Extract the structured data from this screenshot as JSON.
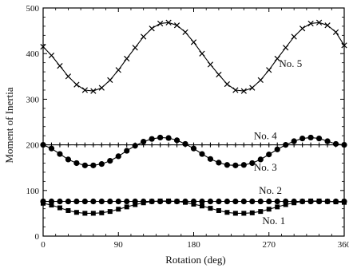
{
  "chart_data": {
    "type": "line",
    "title": "",
    "xlabel": "Rotation (deg)",
    "ylabel": "Moment of   Inertia",
    "xlim": [
      0,
      360
    ],
    "ylim": [
      0,
      500
    ],
    "xticks": [
      0,
      90,
      180,
      270,
      360
    ],
    "xtick_labels": [
      "0",
      "90",
      "180",
      "270",
      "360"
    ],
    "yticks": [
      0,
      100,
      200,
      300,
      400,
      500
    ],
    "ytick_labels": [
      "0",
      "100",
      "200",
      "300",
      "400",
      "500"
    ],
    "grid": false,
    "legend": "inline labels next to each curve",
    "series": [
      {
        "name": "No. 5",
        "marker": "x",
        "x": [
          0,
          10,
          20,
          30,
          40,
          50,
          60,
          70,
          80,
          90,
          100,
          110,
          120,
          130,
          140,
          150,
          160,
          170,
          180,
          190,
          200,
          210,
          220,
          230,
          240,
          250,
          260,
          270,
          280,
          290,
          300,
          310,
          320,
          330,
          340,
          350,
          360
        ],
        "y": [
          415,
          396,
          373,
          350,
          332,
          320,
          318,
          325,
          342,
          364,
          389,
          413,
          437,
          455,
          466,
          468,
          462,
          447,
          425,
          400,
          376,
          354,
          333,
          320,
          318,
          325,
          342,
          364,
          389,
          413,
          437,
          455,
          466,
          468,
          462,
          447,
          418
        ]
      },
      {
        "name": "No. 4",
        "marker": "+",
        "x": [
          0,
          10,
          20,
          30,
          40,
          50,
          60,
          70,
          80,
          90,
          100,
          110,
          120,
          130,
          140,
          150,
          160,
          170,
          180,
          190,
          200,
          210,
          220,
          230,
          240,
          250,
          260,
          270,
          280,
          290,
          300,
          310,
          320,
          330,
          340,
          350,
          360
        ],
        "y": [
          200,
          200,
          200,
          200,
          200,
          200,
          200,
          200,
          200,
          200,
          200,
          200,
          200,
          200,
          200,
          200,
          200,
          200,
          200,
          200,
          200,
          200,
          200,
          200,
          200,
          200,
          200,
          200,
          200,
          200,
          200,
          200,
          200,
          200,
          200,
          200,
          200
        ]
      },
      {
        "name": "No. 3",
        "marker": "filled-circle",
        "x": [
          0,
          10,
          20,
          30,
          40,
          50,
          60,
          70,
          80,
          90,
          100,
          110,
          120,
          130,
          140,
          150,
          160,
          170,
          180,
          190,
          200,
          210,
          220,
          230,
          240,
          250,
          260,
          270,
          280,
          290,
          300,
          310,
          320,
          330,
          340,
          350,
          360
        ],
        "y": [
          200,
          192,
          180,
          168,
          160,
          155,
          155,
          158,
          165,
          175,
          187,
          198,
          207,
          213,
          216,
          215,
          210,
          202,
          192,
          180,
          169,
          161,
          156,
          155,
          156,
          160,
          168,
          179,
          190,
          200,
          208,
          214,
          216,
          214,
          208,
          202,
          200
        ]
      },
      {
        "name": "No. 2",
        "marker": "filled-circle",
        "x": [
          0,
          10,
          20,
          30,
          40,
          50,
          60,
          70,
          80,
          90,
          100,
          110,
          120,
          130,
          140,
          150,
          160,
          170,
          180,
          190,
          200,
          210,
          220,
          230,
          240,
          250,
          260,
          270,
          280,
          290,
          300,
          310,
          320,
          330,
          340,
          350,
          360
        ],
        "y": [
          76,
          76,
          76,
          76,
          76,
          76,
          76,
          76,
          76,
          76,
          76,
          76,
          76,
          76,
          76,
          76,
          76,
          76,
          76,
          76,
          76,
          76,
          76,
          76,
          76,
          76,
          76,
          76,
          76,
          76,
          76,
          76,
          76,
          76,
          76,
          76,
          76
        ]
      },
      {
        "name": "No. 1",
        "marker": "filled-square",
        "x": [
          0,
          10,
          20,
          30,
          40,
          50,
          60,
          70,
          80,
          90,
          100,
          110,
          120,
          130,
          140,
          150,
          160,
          170,
          180,
          190,
          200,
          210,
          220,
          230,
          240,
          250,
          260,
          270,
          280,
          290,
          300,
          310,
          320,
          330,
          340,
          350,
          360
        ],
        "y": [
          72,
          68,
          62,
          56,
          52,
          50,
          50,
          51,
          54,
          59,
          64,
          69,
          73,
          76,
          77,
          77,
          76,
          74,
          70,
          66,
          61,
          56,
          52,
          50,
          50,
          51,
          54,
          59,
          64,
          69,
          73,
          76,
          77,
          77,
          76,
          75,
          74
        ]
      }
    ],
    "annotations": [
      {
        "text": "No. 5",
        "x": 282,
        "y": 371
      },
      {
        "text": "No. 4",
        "x": 252,
        "y": 212
      },
      {
        "text": "No. 3",
        "x": 252,
        "y": 143
      },
      {
        "text": "No. 2",
        "x": 258,
        "y": 93
      },
      {
        "text": "No. 1",
        "x": 262,
        "y": 26
      }
    ]
  }
}
